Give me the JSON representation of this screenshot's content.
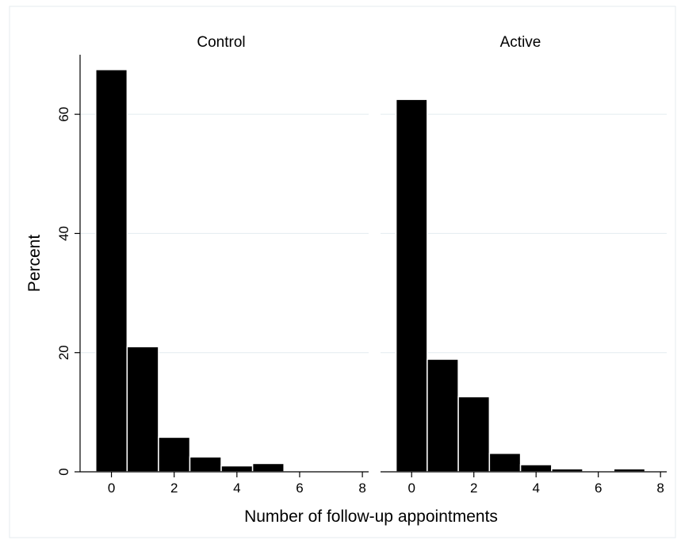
{
  "chart_data": {
    "type": "bar",
    "chart_kind": "histogram",
    "xlabel": "Number of follow-up appointments",
    "ylabel": "Percent",
    "xlim": [
      -1,
      8.2
    ],
    "ylim": [
      0,
      70
    ],
    "xticks": [
      0,
      2,
      4,
      6,
      8
    ],
    "yticks": [
      0,
      20,
      40,
      60
    ],
    "grid": true,
    "bar_color": "#000000",
    "grid_color": "#e3ecef",
    "panels": [
      {
        "title": "Control",
        "bins": [
          0,
          1,
          2,
          3,
          4,
          5,
          6,
          7
        ],
        "values": [
          67.5,
          21.0,
          5.8,
          2.5,
          1.0,
          1.4,
          0,
          0.2
        ]
      },
      {
        "title": "Active",
        "bins": [
          0,
          1,
          2,
          3,
          4,
          5,
          6,
          7
        ],
        "values": [
          62.5,
          18.9,
          12.6,
          3.1,
          1.2,
          0.5,
          0,
          0.5
        ]
      }
    ]
  }
}
